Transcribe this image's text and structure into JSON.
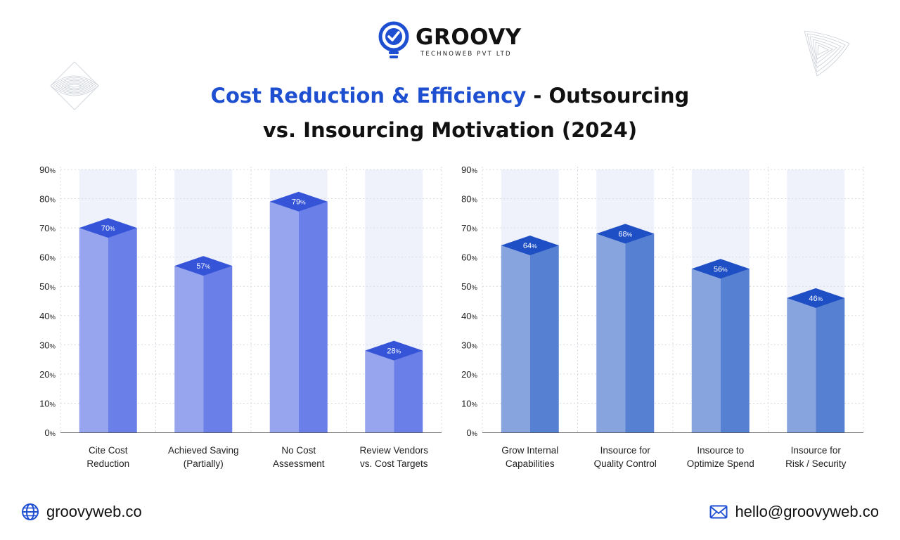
{
  "brand": {
    "name": "GROOVY",
    "subtitle": "TECHNOWEB PVT LTD",
    "accent_color": "#1f4fd1"
  },
  "title": {
    "highlight": "Cost Reduction & Efficiency",
    "rest_line1": " - Outsourcing",
    "line2": "vs. Insourcing Motivation (2024)"
  },
  "footer": {
    "website": "groovyweb.co",
    "email": "hello@groovyweb.co",
    "website_icon": "globe-icon",
    "email_icon": "mail-icon"
  },
  "chart_data": [
    {
      "type": "bar",
      "title": "Outsourcing",
      "categories": [
        [
          "Cite Cost",
          "Reduction"
        ],
        [
          "Achieved Saving",
          "(Partially)"
        ],
        [
          "No Cost",
          "Assessment"
        ],
        [
          "Review Vendors",
          "vs. Cost Targets"
        ]
      ],
      "values": [
        70,
        57,
        79,
        28
      ],
      "value_labels": [
        "70%",
        "57%",
        "79%",
        "28%"
      ],
      "y_ticks": [
        "0%",
        "10%",
        "20%",
        "30%",
        "40%",
        "50%",
        "60%",
        "70%",
        "80%",
        "90%"
      ],
      "ylim": [
        0,
        90
      ],
      "grid": true,
      "colors": {
        "face_light": "#97a4ee",
        "face_dark": "#6b7fe8",
        "top": "#3554d8",
        "band": "#f0f2fb"
      }
    },
    {
      "type": "bar",
      "title": "Insourcing",
      "categories": [
        [
          "Grow Internal",
          "Capabilities"
        ],
        [
          "Insource for",
          "Quality Control"
        ],
        [
          "Insource to",
          "Optimize Spend"
        ],
        [
          "Insource for",
          "Risk / Security"
        ]
      ],
      "values": [
        64,
        68,
        56,
        46
      ],
      "value_labels": [
        "64%",
        "68%",
        "56%",
        "46%"
      ],
      "y_ticks": [
        "0%",
        "10%",
        "20%",
        "30%",
        "40%",
        "50%",
        "60%",
        "70%",
        "80%",
        "90%"
      ],
      "ylim": [
        0,
        90
      ],
      "grid": true,
      "colors": {
        "face_light": "#88a4de",
        "face_dark": "#5680d2",
        "top": "#1f4fc4",
        "band": "#f0f2fb"
      }
    }
  ]
}
